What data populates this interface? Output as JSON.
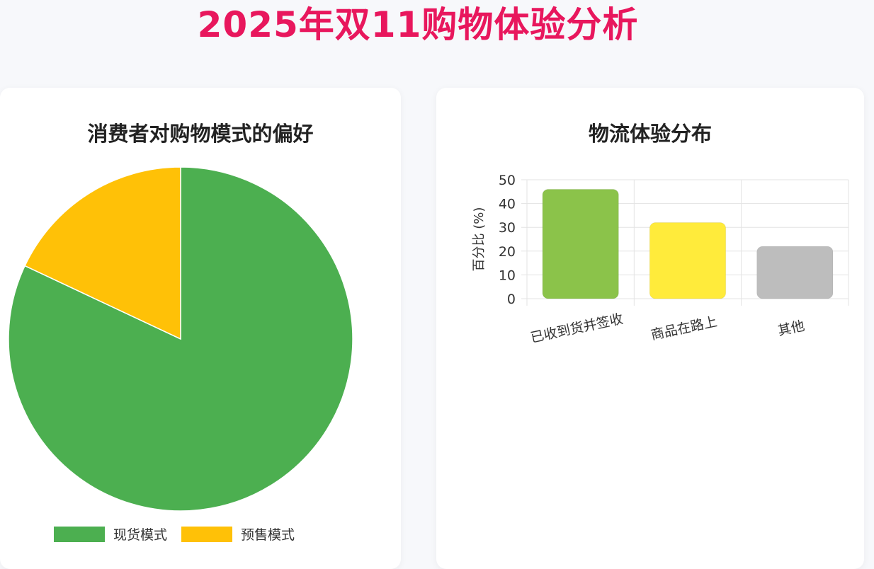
{
  "page": {
    "title": "2025年双11购物体验分析"
  },
  "chart_data": [
    {
      "type": "pie",
      "title": "消费者对购物模式的偏好",
      "slices": [
        {
          "label": "现货模式",
          "value": 82,
          "color": "#4caf50"
        },
        {
          "label": "预售模式",
          "value": 18,
          "color": "#ffc107"
        }
      ],
      "legend": "bottom"
    },
    {
      "type": "bar",
      "title": "物流体验分布",
      "categories": [
        "已收到货并签收",
        "商品在路上",
        "其他"
      ],
      "values": [
        46,
        32,
        22
      ],
      "colors": [
        "#8bc34a",
        "#ffeb3b",
        "#bdbdbd"
      ],
      "ylabel": "百分比 (%)",
      "xlabel": "",
      "ylim": [
        0,
        50
      ],
      "yticks": [
        0,
        10,
        20,
        30,
        40,
        50
      ],
      "grid": true
    }
  ]
}
